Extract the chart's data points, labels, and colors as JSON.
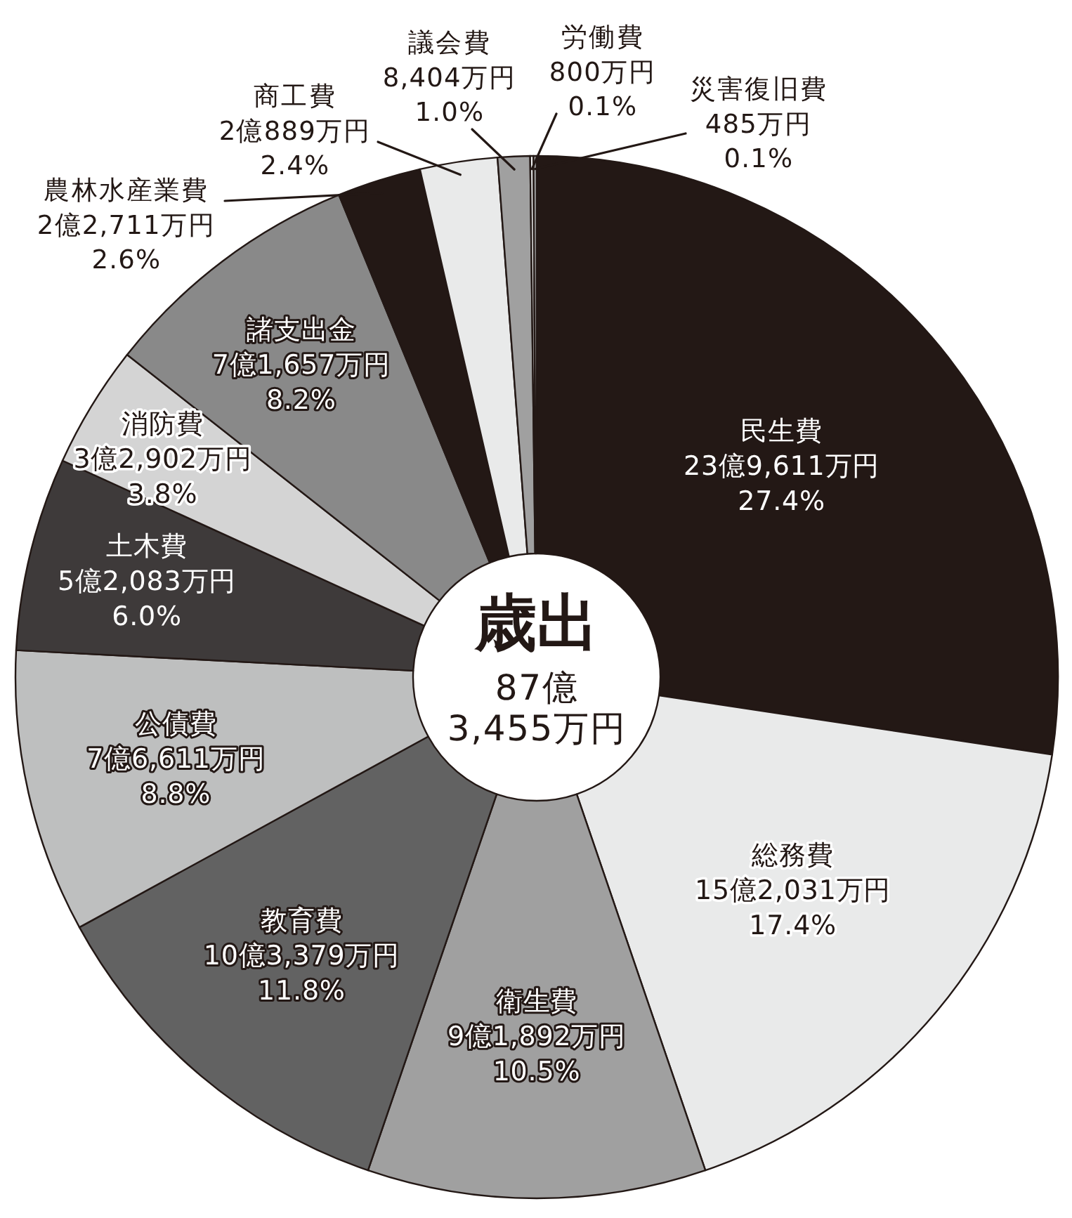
{
  "chart_data": {
    "type": "donut",
    "title": "歳出",
    "subtitle": "87億\n3,455万円",
    "categories": [
      "民生費",
      "総務費",
      "衛生費",
      "教育費",
      "公債費",
      "土木費",
      "消防費",
      "諸支出金",
      "農林水産業費",
      "商工費",
      "議会費",
      "労働費",
      "災害復旧費"
    ],
    "values": [
      27.4,
      17.4,
      10.5,
      11.8,
      8.8,
      6.0,
      3.8,
      8.2,
      2.6,
      2.4,
      1.0,
      0.1,
      0.1
    ],
    "value_labels": [
      "23億9,611万円\n27.4%",
      "15億2,031万円\n17.4%",
      "9億1,892万円\n10.5%",
      "10億3,379万円\n11.8%",
      "7億6,611万円\n8.8%",
      "5億2,083万円\n6.0%",
      "3億2,902万円\n3.8%",
      "7億1,657万円\n8.2%",
      "2億2,711万円\n2.6%",
      "2億889万円\n2.4%",
      "8,404万円\n1.0%",
      "800万円\n0.1%",
      "485万円\n0.1%"
    ],
    "colors": [
      "#231815",
      "#e9eaea",
      "#a0a0a0",
      "#626262",
      "#bebfbf",
      "#3e3a3a",
      "#d4d4d4",
      "#898989",
      "#231815",
      "#e9eaea",
      "#a0a0a0",
      "#f4f4f4",
      "#a0a0a0"
    ]
  }
}
